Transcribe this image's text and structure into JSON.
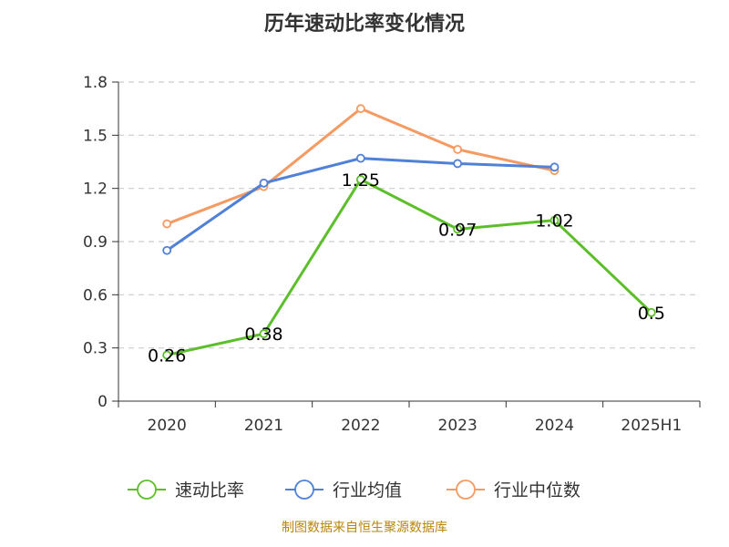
{
  "chart_data": {
    "type": "line",
    "title": "历年速动比率变化情况",
    "categories": [
      "2020",
      "2021",
      "2022",
      "2023",
      "2024",
      "2025H1"
    ],
    "ylim": [
      0,
      1.8
    ],
    "yticks": [
      "0",
      "0.3",
      "0.6",
      "0.9",
      "1.2",
      "1.5",
      "1.8"
    ],
    "grid": true,
    "legend_position": "bottom",
    "series": [
      {
        "name": "速动比率",
        "color": "#5cbf2a",
        "values": [
          0.26,
          0.38,
          1.25,
          0.97,
          1.02,
          0.5
        ],
        "labels": [
          "0.26",
          "0.38",
          "1.25",
          "0.97",
          "1.02",
          "0.5"
        ]
      },
      {
        "name": "行业均值",
        "color": "#4f81d9",
        "values": [
          0.85,
          1.23,
          1.37,
          1.34,
          1.32,
          null
        ]
      },
      {
        "name": "行业中位数",
        "color": "#f59a62",
        "values": [
          1.0,
          1.21,
          1.65,
          1.42,
          1.3,
          null
        ]
      }
    ]
  },
  "source": "制图数据来自恒生聚源数据库"
}
